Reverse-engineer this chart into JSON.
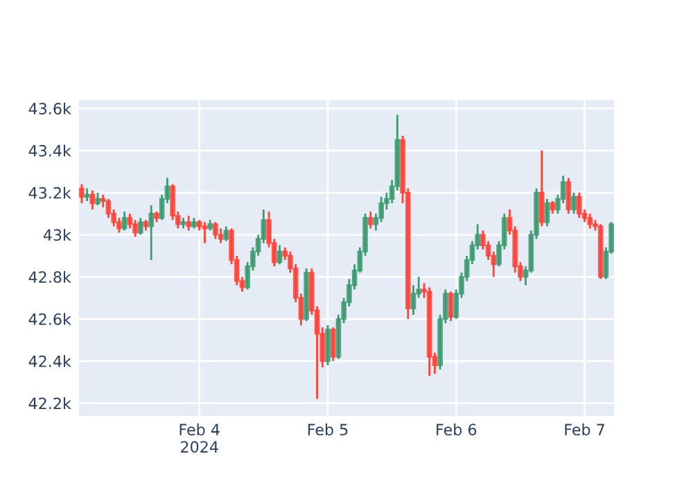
{
  "chart_data": {
    "type": "candlestick",
    "x": [
      "2024-02-03T02:00",
      "2024-02-03T03:00",
      "2024-02-03T04:00",
      "2024-02-03T05:00",
      "2024-02-03T06:00",
      "2024-02-03T07:00",
      "2024-02-03T08:00",
      "2024-02-03T09:00",
      "2024-02-03T10:00",
      "2024-02-03T11:00",
      "2024-02-03T12:00",
      "2024-02-03T13:00",
      "2024-02-03T14:00",
      "2024-02-03T15:00",
      "2024-02-03T16:00",
      "2024-02-03T17:00",
      "2024-02-03T18:00",
      "2024-02-03T19:00",
      "2024-02-03T20:00",
      "2024-02-03T21:00",
      "2024-02-03T22:00",
      "2024-02-03T23:00",
      "2024-02-04T00:00",
      "2024-02-04T01:00",
      "2024-02-04T02:00",
      "2024-02-04T03:00",
      "2024-02-04T04:00",
      "2024-02-04T05:00",
      "2024-02-04T06:00",
      "2024-02-04T07:00",
      "2024-02-04T08:00",
      "2024-02-04T09:00",
      "2024-02-04T10:00",
      "2024-02-04T11:00",
      "2024-02-04T12:00",
      "2024-02-04T13:00",
      "2024-02-04T14:00",
      "2024-02-04T15:00",
      "2024-02-04T16:00",
      "2024-02-04T17:00",
      "2024-02-04T18:00",
      "2024-02-04T19:00",
      "2024-02-04T20:00",
      "2024-02-04T21:00",
      "2024-02-04T22:00",
      "2024-02-04T23:00",
      "2024-02-05T00:00",
      "2024-02-05T01:00",
      "2024-02-05T02:00",
      "2024-02-05T03:00",
      "2024-02-05T04:00",
      "2024-02-05T05:00",
      "2024-02-05T06:00",
      "2024-02-05T07:00",
      "2024-02-05T08:00",
      "2024-02-05T09:00",
      "2024-02-05T10:00",
      "2024-02-05T11:00",
      "2024-02-05T12:00",
      "2024-02-05T13:00",
      "2024-02-05T14:00",
      "2024-02-05T15:00",
      "2024-02-05T16:00",
      "2024-02-05T17:00",
      "2024-02-05T18:00",
      "2024-02-05T19:00",
      "2024-02-05T20:00",
      "2024-02-05T21:00",
      "2024-02-05T22:00",
      "2024-02-05T23:00",
      "2024-02-06T00:00",
      "2024-02-06T01:00",
      "2024-02-06T02:00",
      "2024-02-06T03:00",
      "2024-02-06T04:00",
      "2024-02-06T05:00",
      "2024-02-06T06:00",
      "2024-02-06T07:00",
      "2024-02-06T08:00",
      "2024-02-06T09:00",
      "2024-02-06T10:00",
      "2024-02-06T11:00",
      "2024-02-06T12:00",
      "2024-02-06T13:00",
      "2024-02-06T14:00",
      "2024-02-06T15:00",
      "2024-02-06T16:00",
      "2024-02-06T17:00",
      "2024-02-06T18:00",
      "2024-02-06T19:00",
      "2024-02-06T20:00",
      "2024-02-06T21:00",
      "2024-02-06T22:00",
      "2024-02-06T23:00",
      "2024-02-07T00:00",
      "2024-02-07T01:00",
      "2024-02-07T02:00",
      "2024-02-07T03:00",
      "2024-02-07T04:00",
      "2024-02-07T05:00"
    ],
    "ohlc": [
      [
        43220,
        43240,
        43150,
        43180
      ],
      [
        43180,
        43220,
        43160,
        43190
      ],
      [
        43190,
        43210,
        43120,
        43150
      ],
      [
        43150,
        43200,
        43140,
        43170
      ],
      [
        43170,
        43190,
        43130,
        43160
      ],
      [
        43160,
        43170,
        43080,
        43100
      ],
      [
        43100,
        43120,
        43040,
        43060
      ],
      [
        43060,
        43080,
        43010,
        43030
      ],
      [
        43030,
        43110,
        43020,
        43080
      ],
      [
        43080,
        43100,
        43030,
        43050
      ],
      [
        43050,
        43070,
        42990,
        43010
      ],
      [
        43010,
        43080,
        43000,
        43060
      ],
      [
        43060,
        43070,
        43020,
        43040
      ],
      [
        43040,
        43140,
        42880,
        43100
      ],
      [
        43100,
        43110,
        43060,
        43080
      ],
      [
        43080,
        43190,
        43070,
        43170
      ],
      [
        43170,
        43270,
        43150,
        43230
      ],
      [
        43230,
        43240,
        43070,
        43090
      ],
      [
        43090,
        43110,
        43030,
        43050
      ],
      [
        43050,
        43080,
        43030,
        43060
      ],
      [
        43060,
        43090,
        43020,
        43040
      ],
      [
        43040,
        43080,
        43030,
        43060
      ],
      [
        43060,
        43070,
        43020,
        43040
      ],
      [
        43040,
        43060,
        42960,
        43030
      ],
      [
        43030,
        43070,
        43020,
        43050
      ],
      [
        43050,
        43060,
        42980,
        43000
      ],
      [
        43000,
        43030,
        42960,
        42980
      ],
      [
        42980,
        43040,
        42970,
        43020
      ],
      [
        43020,
        43030,
        42860,
        42880
      ],
      [
        42880,
        42900,
        42760,
        42780
      ],
      [
        42780,
        42800,
        42730,
        42750
      ],
      [
        42750,
        42870,
        42740,
        42850
      ],
      [
        42850,
        42940,
        42830,
        42920
      ],
      [
        42920,
        43000,
        42900,
        42980
      ],
      [
        42980,
        43120,
        42960,
        43070
      ],
      [
        43070,
        43110,
        42940,
        42960
      ],
      [
        42960,
        42980,
        42850,
        42870
      ],
      [
        42870,
        42950,
        42860,
        42920
      ],
      [
        42920,
        42940,
        42880,
        42900
      ],
      [
        42900,
        42920,
        42820,
        42840
      ],
      [
        42840,
        42860,
        42680,
        42700
      ],
      [
        42700,
        42720,
        42570,
        42600
      ],
      [
        42600,
        42840,
        42590,
        42820
      ],
      [
        42820,
        42840,
        42620,
        42640
      ],
      [
        42640,
        42660,
        42220,
        42530
      ],
      [
        42530,
        42560,
        42370,
        42400
      ],
      [
        42400,
        42570,
        42380,
        42550
      ],
      [
        42550,
        42560,
        42400,
        42420
      ],
      [
        42420,
        42620,
        42410,
        42600
      ],
      [
        42600,
        42700,
        42580,
        42680
      ],
      [
        42680,
        42790,
        42660,
        42760
      ],
      [
        42760,
        42860,
        42740,
        42830
      ],
      [
        42830,
        42940,
        42820,
        42920
      ],
      [
        42920,
        43100,
        42900,
        43080
      ],
      [
        43080,
        43110,
        43030,
        43050
      ],
      [
        43050,
        43100,
        43020,
        43080
      ],
      [
        43080,
        43180,
        43060,
        43150
      ],
      [
        43150,
        43200,
        43120,
        43170
      ],
      [
        43170,
        43260,
        43150,
        43230
      ],
      [
        43230,
        43570,
        43210,
        43450
      ],
      [
        43450,
        43470,
        43150,
        43200
      ],
      [
        43200,
        43220,
        42600,
        42650
      ],
      [
        42650,
        42760,
        42620,
        42720
      ],
      [
        42720,
        42800,
        42700,
        42740
      ],
      [
        42740,
        42770,
        42700,
        42730
      ],
      [
        42730,
        42750,
        42330,
        42420
      ],
      [
        42420,
        42440,
        42340,
        42380
      ],
      [
        42380,
        42620,
        42360,
        42600
      ],
      [
        42600,
        42740,
        42580,
        42720
      ],
      [
        42720,
        42730,
        42590,
        42610
      ],
      [
        42610,
        42740,
        42600,
        42720
      ],
      [
        42720,
        42820,
        42700,
        42800
      ],
      [
        42800,
        42900,
        42780,
        42880
      ],
      [
        42880,
        42970,
        42860,
        42950
      ],
      [
        42950,
        43050,
        42930,
        43000
      ],
      [
        43000,
        43020,
        42930,
        42950
      ],
      [
        42950,
        42970,
        42880,
        42900
      ],
      [
        42900,
        42920,
        42800,
        42860
      ],
      [
        42860,
        42970,
        42850,
        42950
      ],
      [
        42950,
        43100,
        42930,
        43080
      ],
      [
        43080,
        43120,
        43000,
        43020
      ],
      [
        43020,
        43040,
        42820,
        42850
      ],
      [
        42850,
        42870,
        42780,
        42800
      ],
      [
        42800,
        42850,
        42760,
        42830
      ],
      [
        42830,
        43020,
        42820,
        43000
      ],
      [
        43000,
        43220,
        42980,
        43200
      ],
      [
        43200,
        43400,
        43040,
        43060
      ],
      [
        43060,
        43170,
        43040,
        43150
      ],
      [
        43150,
        43160,
        43100,
        43120
      ],
      [
        43120,
        43190,
        43100,
        43170
      ],
      [
        43170,
        43280,
        43150,
        43250
      ],
      [
        43250,
        43270,
        43100,
        43120
      ],
      [
        43120,
        43200,
        43100,
        43180
      ],
      [
        43180,
        43200,
        43080,
        43100
      ],
      [
        43100,
        43120,
        43060,
        43080
      ],
      [
        43080,
        43100,
        43030,
        43050
      ],
      [
        43050,
        43070,
        43020,
        43040
      ],
      [
        43040,
        43050,
        42790,
        42800
      ],
      [
        42800,
        42940,
        42790,
        42920
      ],
      [
        42920,
        43060,
        42910,
        43050
      ]
    ],
    "colors": [
      "#ff4136",
      "#3d9970",
      "#ff4136",
      "#3d9970",
      "#ff4136",
      "#ff4136",
      "#ff4136",
      "#ff4136",
      "#3d9970",
      "#ff4136",
      "#ff4136",
      "#3d9970",
      "#ff4136",
      "#3d9970",
      "#ff4136",
      "#3d9970",
      "#3d9970",
      "#ff4136",
      "#ff4136",
      "#3d9970",
      "#ff4136",
      "#3d9970",
      "#ff4136",
      "#ff4136",
      "#3d9970",
      "#ff4136",
      "#ff4136",
      "#3d9970",
      "#ff4136",
      "#ff4136",
      "#ff4136",
      "#3d9970",
      "#3d9970",
      "#3d9970",
      "#3d9970",
      "#ff4136",
      "#ff4136",
      "#3d9970",
      "#ff4136",
      "#ff4136",
      "#ff4136",
      "#ff4136",
      "#3d9970",
      "#ff4136",
      "#ff4136",
      "#ff4136",
      "#3d9970",
      "#ff4136",
      "#3d9970",
      "#3d9970",
      "#3d9970",
      "#3d9970",
      "#3d9970",
      "#3d9970",
      "#ff4136",
      "#3d9970",
      "#3d9970",
      "#3d9970",
      "#3d9970",
      "#3d9970",
      "#ff4136",
      "#ff4136",
      "#3d9970",
      "#3d9970",
      "#ff4136",
      "#ff4136",
      "#ff4136",
      "#3d9970",
      "#3d9970",
      "#ff4136",
      "#3d9970",
      "#3d9970",
      "#3d9970",
      "#3d9970",
      "#3d9970",
      "#ff4136",
      "#ff4136",
      "#ff4136",
      "#3d9970",
      "#3d9970",
      "#ff4136",
      "#ff4136",
      "#ff4136",
      "#3d9970",
      "#3d9970",
      "#3d9970",
      "#ff4136",
      "#3d9970",
      "#ff4136",
      "#3d9970",
      "#3d9970",
      "#ff4136",
      "#3d9970",
      "#ff4136",
      "#ff4136",
      "#ff4136",
      "#ff4136",
      "#ff4136",
      "#3d9970",
      "#3d9970"
    ],
    "xlim": [
      "2024-02-03T01:30",
      "2024-02-07T05:30"
    ],
    "xticks": [
      {
        "value": "2024-02-04",
        "label": "Feb 4\n2024"
      },
      {
        "value": "2024-02-05",
        "label": "Feb 5"
      },
      {
        "value": "2024-02-06",
        "label": "Feb 6"
      },
      {
        "value": "2024-02-07",
        "label": "Feb 7"
      }
    ],
    "ylim": [
      42140,
      43640
    ],
    "yticks": [
      {
        "value": 42200,
        "label": "42.2k"
      },
      {
        "value": 42400,
        "label": "42.4k"
      },
      {
        "value": 42600,
        "label": "42.6k"
      },
      {
        "value": 42800,
        "label": "42.8k"
      },
      {
        "value": 43000,
        "label": "43k"
      },
      {
        "value": 43200,
        "label": "43.2k"
      },
      {
        "value": 43400,
        "label": "43.4k"
      },
      {
        "value": 43600,
        "label": "43.6k"
      }
    ],
    "grid": true
  }
}
